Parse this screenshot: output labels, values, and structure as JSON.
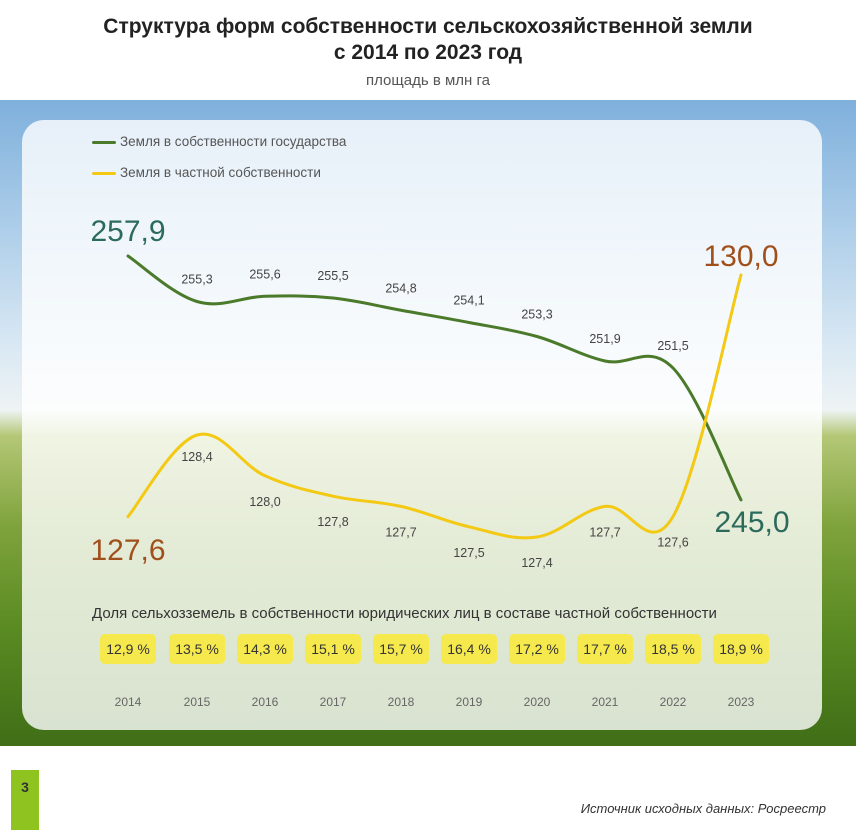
{
  "header": {
    "title_line1": "Структура форм собственности сельскохозяйственной земли",
    "title_line2": "с 2014 по 2023 год",
    "subtitle": "площадь в млн га"
  },
  "colors": {
    "state": "#4a7a2a",
    "private": "#f3c914",
    "state_label": "#2c6b5c",
    "private_label": "#a0501a",
    "badge": "#f5e94e"
  },
  "chart_data": {
    "type": "line",
    "categories": [
      "2014",
      "2015",
      "2016",
      "2017",
      "2018",
      "2019",
      "2020",
      "2021",
      "2022",
      "2023"
    ],
    "series": [
      {
        "name": "Земля в собственности государства",
        "values": [
          257.9,
          255.3,
          255.6,
          255.5,
          254.8,
          254.1,
          253.3,
          251.9,
          251.5,
          245.0
        ],
        "labels": [
          "257,9",
          "255,3",
          "255,6",
          "255,5",
          "254,8",
          "254,1",
          "253,3",
          "251,9",
          "251,5",
          "245,0"
        ]
      },
      {
        "name": "Земля в частной собственности",
        "values": [
          127.6,
          128.4,
          128.0,
          127.8,
          127.7,
          127.5,
          127.4,
          127.7,
          127.6,
          130.0
        ],
        "labels": [
          "127,6",
          "128,4",
          "128,0",
          "127,8",
          "127,7",
          "127,5",
          "127,4",
          "127,7",
          "127,6",
          "130,0"
        ]
      }
    ],
    "legend_position": "top-left",
    "grid": false
  },
  "share": {
    "title": "Доля сельхозземель в собственности юридических лиц в составе частной собственности",
    "values": [
      "12,9 %",
      "13,5 %",
      "14,3 %",
      "15,1 %",
      "15,7 %",
      "16,4 %",
      "17,2 %",
      "17,7 %",
      "18,5 %",
      "18,9 %"
    ]
  },
  "footer": {
    "page_number": "3",
    "source": "Источник исходных данных: Росреестр"
  }
}
